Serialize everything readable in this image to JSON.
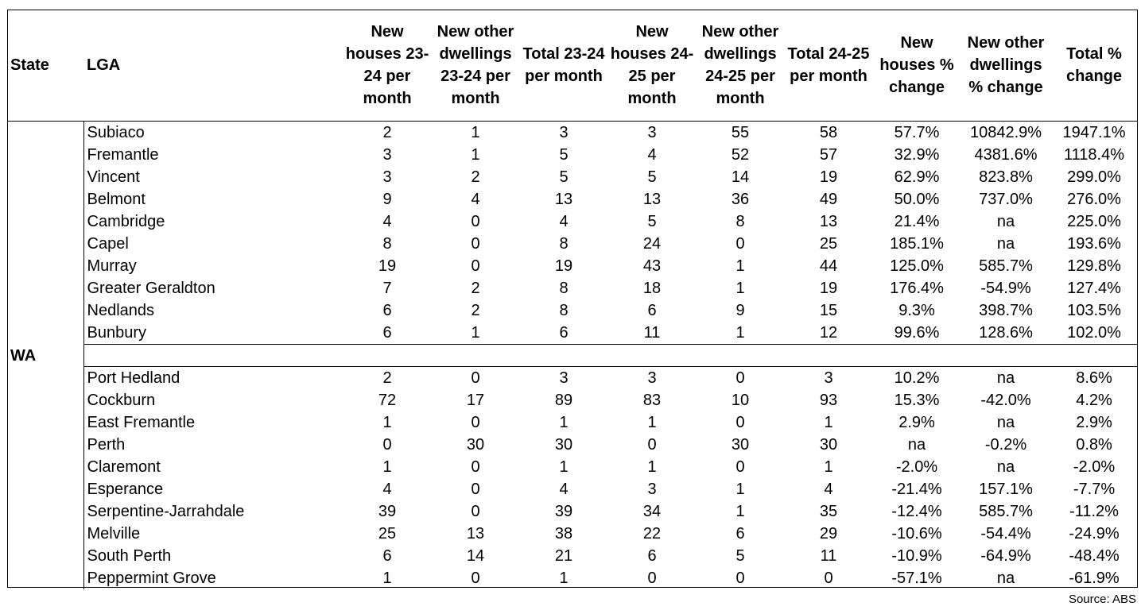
{
  "table": {
    "headers": {
      "state": "State",
      "lga": "LGA",
      "new_houses_2324": "New houses 23-24 per month",
      "new_other_2324": "New other dwellings 23-24 per month",
      "total_2324": "Total 23-24 per month",
      "new_houses_2425": "New houses 24-25 per month",
      "new_other_2425": "New other dwellings 24-25 per month",
      "total_2425": "Total 24-25 per month",
      "houses_pct": "New houses % change",
      "other_pct": "New other dwellings % change",
      "total_pct": "Total % change"
    },
    "state": "WA",
    "top_rows": [
      [
        "Subiaco",
        "2",
        "1",
        "3",
        "3",
        "55",
        "58",
        "57.7%",
        "10842.9%",
        "1947.1%"
      ],
      [
        "Fremantle",
        "3",
        "1",
        "5",
        "4",
        "52",
        "57",
        "32.9%",
        "4381.6%",
        "1118.4%"
      ],
      [
        "Vincent",
        "3",
        "2",
        "5",
        "5",
        "14",
        "19",
        "62.9%",
        "823.8%",
        "299.0%"
      ],
      [
        "Belmont",
        "9",
        "4",
        "13",
        "13",
        "36",
        "49",
        "50.0%",
        "737.0%",
        "276.0%"
      ],
      [
        "Cambridge",
        "4",
        "0",
        "4",
        "5",
        "8",
        "13",
        "21.4%",
        "na",
        "225.0%"
      ],
      [
        "Capel",
        "8",
        "0",
        "8",
        "24",
        "0",
        "25",
        "185.1%",
        "na",
        "193.6%"
      ],
      [
        "Murray",
        "19",
        "0",
        "19",
        "43",
        "1",
        "44",
        "125.0%",
        "585.7%",
        "129.8%"
      ],
      [
        "Greater Geraldton",
        "7",
        "2",
        "8",
        "18",
        "1",
        "19",
        "176.4%",
        "-54.9%",
        "127.4%"
      ],
      [
        "Nedlands",
        "6",
        "2",
        "8",
        "6",
        "9",
        "15",
        "9.3%",
        "398.7%",
        "103.5%"
      ],
      [
        "Bunbury",
        "6",
        "1",
        "6",
        "11",
        "1",
        "12",
        "99.6%",
        "128.6%",
        "102.0%"
      ]
    ],
    "bottom_rows": [
      [
        "Port Hedland",
        "2",
        "0",
        "3",
        "3",
        "0",
        "3",
        "10.2%",
        "na",
        "8.6%"
      ],
      [
        "Cockburn",
        "72",
        "17",
        "89",
        "83",
        "10",
        "93",
        "15.3%",
        "-42.0%",
        "4.2%"
      ],
      [
        "East Fremantle",
        "1",
        "0",
        "1",
        "1",
        "0",
        "1",
        "2.9%",
        "na",
        "2.9%"
      ],
      [
        "Perth",
        "0",
        "30",
        "30",
        "0",
        "30",
        "30",
        "na",
        "-0.2%",
        "0.8%"
      ],
      [
        "Claremont",
        "1",
        "0",
        "1",
        "1",
        "0",
        "1",
        "-2.0%",
        "na",
        "-2.0%"
      ],
      [
        "Esperance",
        "4",
        "0",
        "4",
        "3",
        "1",
        "4",
        "-21.4%",
        "157.1%",
        "-7.7%"
      ],
      [
        "Serpentine-Jarrahdale",
        "39",
        "0",
        "39",
        "34",
        "1",
        "35",
        "-12.4%",
        "585.7%",
        "-11.2%"
      ],
      [
        "Melville",
        "25",
        "13",
        "38",
        "22",
        "6",
        "29",
        "-10.6%",
        "-54.4%",
        "-24.9%"
      ],
      [
        "South Perth",
        "6",
        "14",
        "21",
        "6",
        "5",
        "11",
        "-10.9%",
        "-64.9%",
        "-48.4%"
      ],
      [
        "Peppermint Grove",
        "1",
        "0",
        "1",
        "0",
        "0",
        "0",
        "-57.1%",
        "na",
        "-61.9%"
      ]
    ]
  },
  "source": "Source: ABS"
}
